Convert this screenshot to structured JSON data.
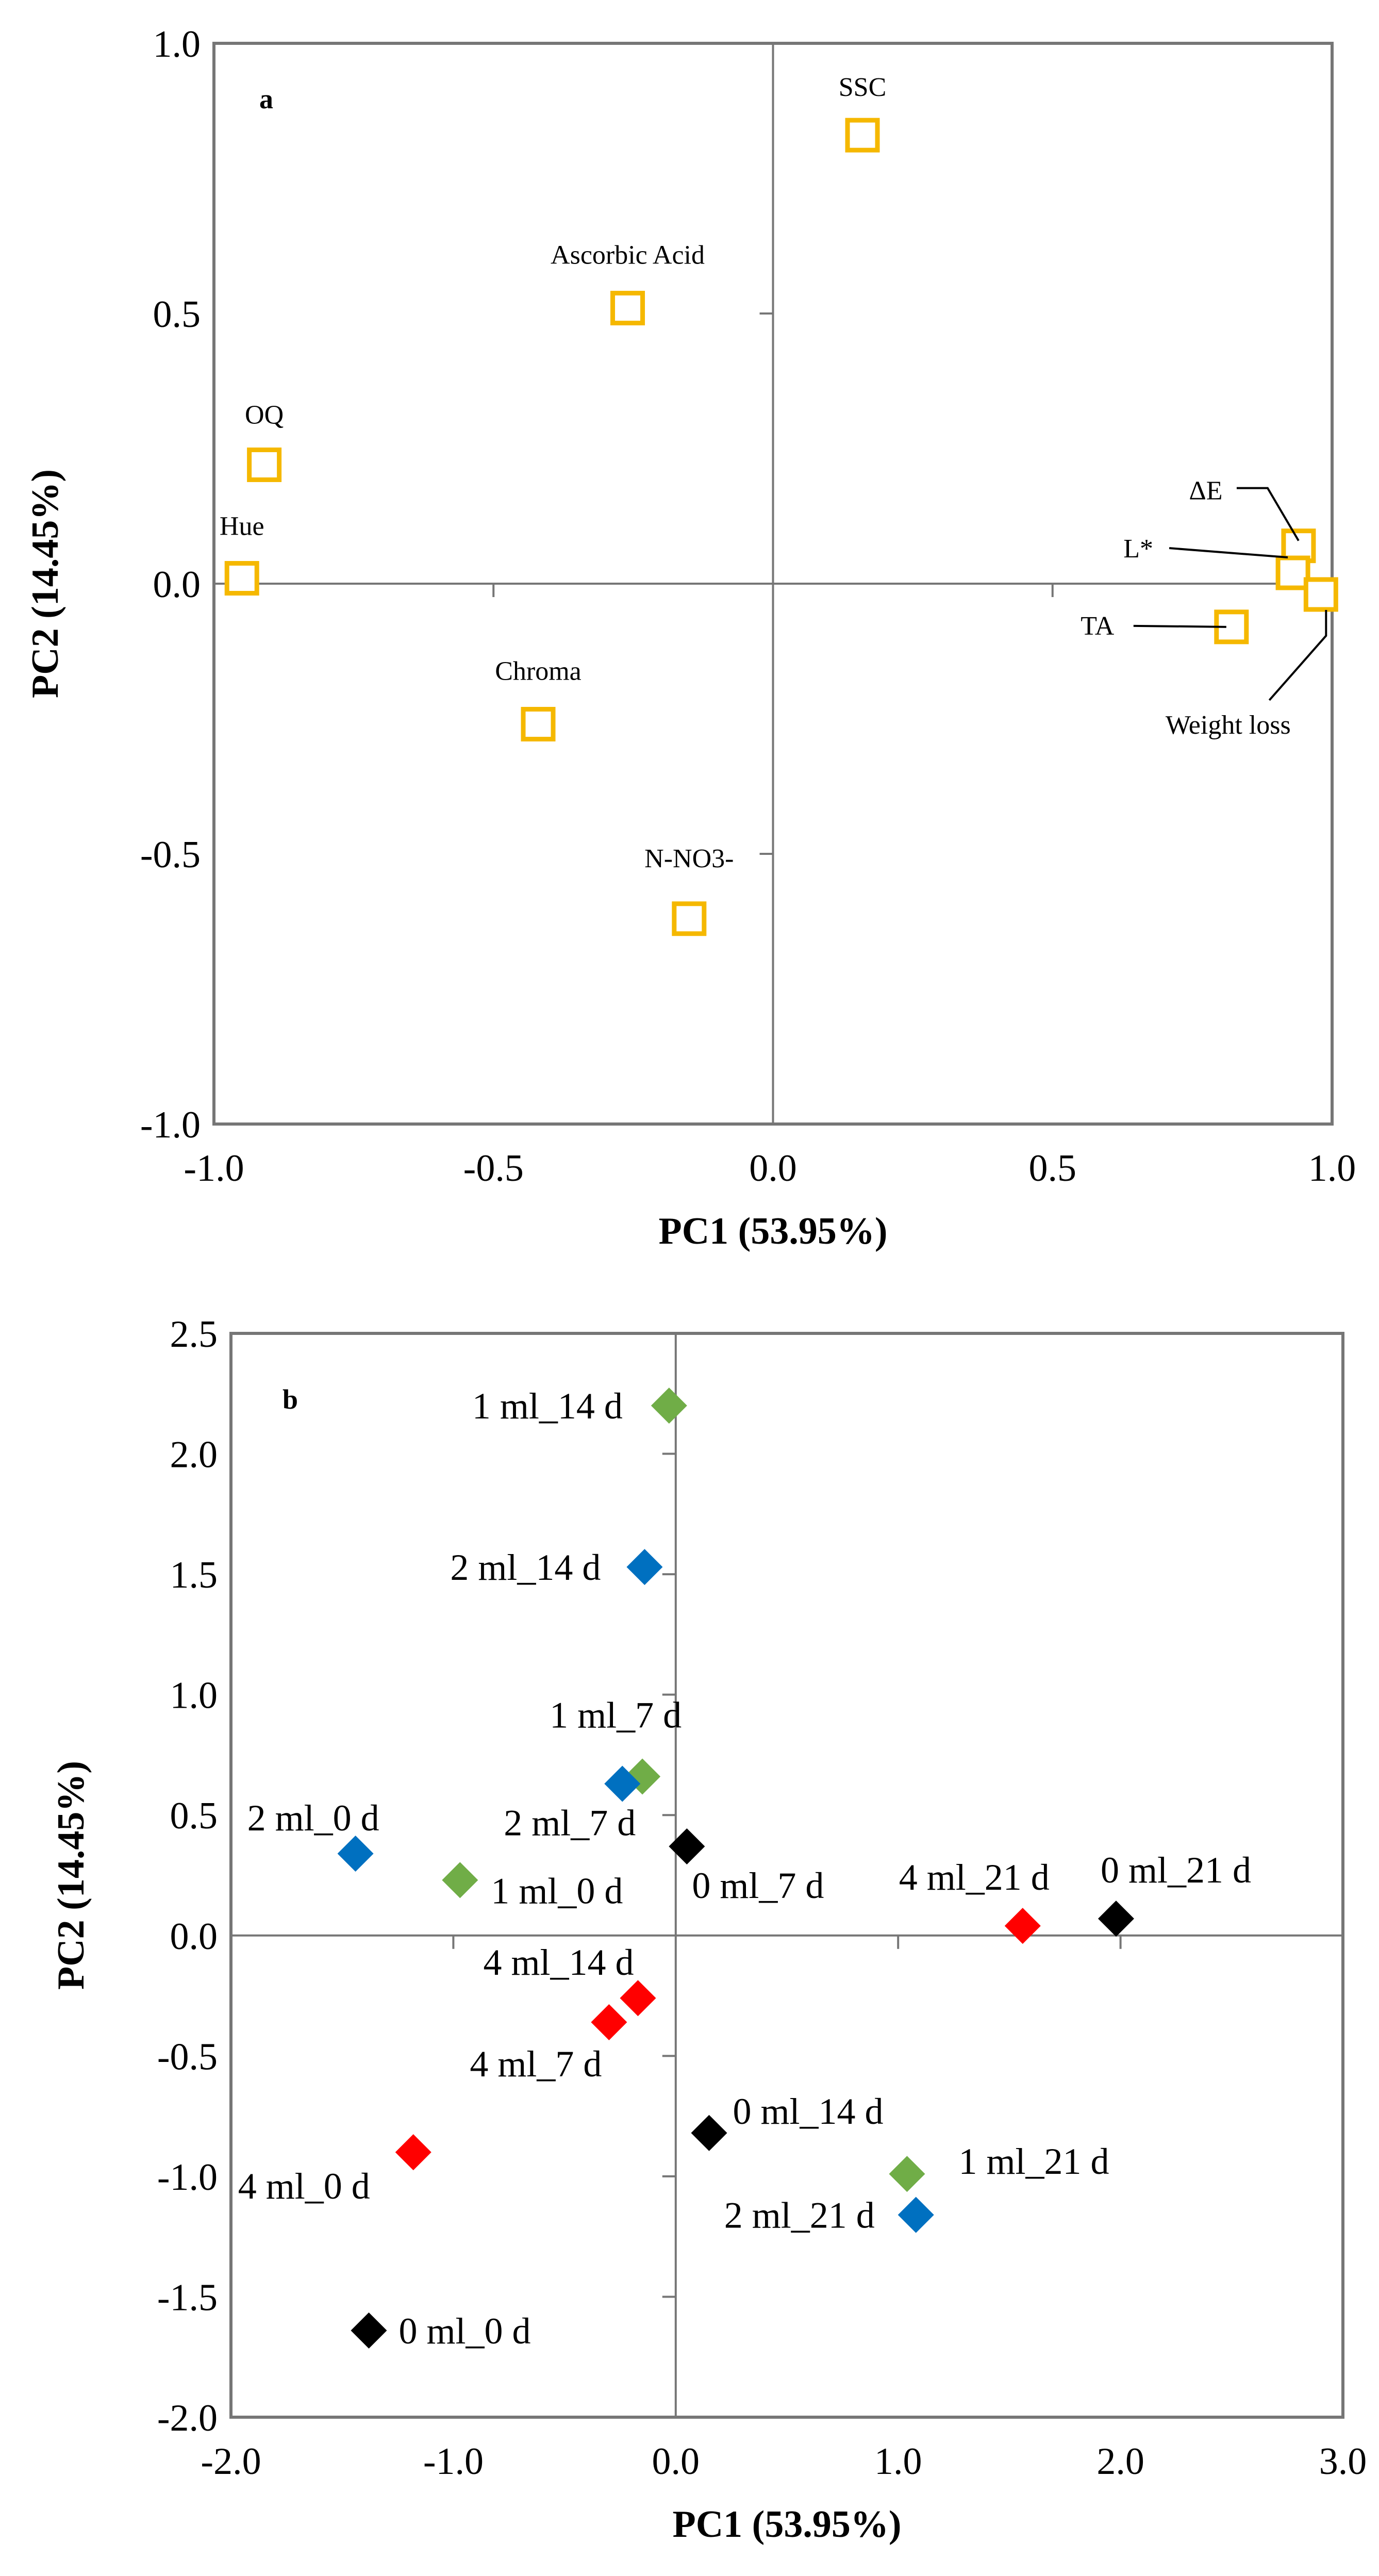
{
  "chart_data": [
    {
      "panel": "a",
      "type": "scatter",
      "title": "",
      "xlabel": "PC1 (53.95%)",
      "ylabel": "PC2 (14.45%)",
      "xlim": [
        -1.0,
        1.0
      ],
      "ylim": [
        -1.0,
        1.0
      ],
      "xticks": [
        "-1.0",
        "-0.5",
        "0.0",
        "0.5",
        "1.0"
      ],
      "yticks": [
        "1.0",
        "0.5",
        "0.0",
        "-0.5",
        "-1.0"
      ],
      "marker": {
        "shape": "hollow-square",
        "color": "#F5B800"
      },
      "points": [
        {
          "label": "SSC",
          "x": 0.16,
          "y": 0.83
        },
        {
          "label": "Ascorbic Acid",
          "x": -0.26,
          "y": 0.51
        },
        {
          "label": "OQ",
          "x": -0.91,
          "y": 0.22
        },
        {
          "label": "Hue",
          "x": -0.95,
          "y": 0.01
        },
        {
          "label": "Chroma",
          "x": -0.42,
          "y": -0.26
        },
        {
          "label": "N-NO3-",
          "x": -0.15,
          "y": -0.62
        },
        {
          "label": "ΔE",
          "x": 0.94,
          "y": 0.07
        },
        {
          "label": "L*",
          "x": 0.93,
          "y": 0.02
        },
        {
          "label": "Weight loss",
          "x": 0.98,
          "y": -0.02
        },
        {
          "label": "TA",
          "x": 0.82,
          "y": -0.08
        }
      ]
    },
    {
      "panel": "b",
      "type": "scatter",
      "title": "",
      "xlabel": "PC1 (53.95%)",
      "ylabel": "PC2 (14.45%)",
      "xlim": [
        -2.0,
        3.0
      ],
      "ylim": [
        -2.0,
        2.5
      ],
      "xticks": [
        "-2.0",
        "-1.0",
        "0.0",
        "1.0",
        "2.0",
        "3.0"
      ],
      "yticks": [
        "2.5",
        "2.0",
        "1.5",
        "1.0",
        "0.5",
        "0.0",
        "-0.5",
        "-1.0",
        "-1.5",
        "-2.0"
      ],
      "marker": {
        "shape": "diamond"
      },
      "series": [
        {
          "name": "0 ml",
          "color": "#000000",
          "points": [
            {
              "label": "0 ml_0 d",
              "x": -1.38,
              "y": -1.64
            },
            {
              "label": "0 ml_7 d",
              "x": 0.05,
              "y": 0.37
            },
            {
              "label": "0 ml_14 d",
              "x": 0.15,
              "y": -0.82
            },
            {
              "label": "0 ml_21 d",
              "x": 1.98,
              "y": 0.07
            }
          ]
        },
        {
          "name": "1 ml",
          "color": "#70AD47",
          "points": [
            {
              "label": "1 ml_0 d",
              "x": -0.97,
              "y": 0.23
            },
            {
              "label": "1 ml_7 d",
              "x": -0.15,
              "y": 0.66
            },
            {
              "label": "1 ml_14 d",
              "x": -0.03,
              "y": 2.2
            },
            {
              "label": "1 ml_21 d",
              "x": 1.04,
              "y": -0.99
            }
          ]
        },
        {
          "name": "2 ml",
          "color": "#0070C0",
          "points": [
            {
              "label": "2 ml_0 d",
              "x": -1.44,
              "y": 0.34
            },
            {
              "label": "2 ml_7 d",
              "x": -0.24,
              "y": 0.63
            },
            {
              "label": "2 ml_14 d",
              "x": -0.14,
              "y": 1.53
            },
            {
              "label": "2 ml_21 d",
              "x": 1.08,
              "y": -1.16
            }
          ]
        },
        {
          "name": "4 ml",
          "color": "#FF0000",
          "points": [
            {
              "label": "4 ml_0 d",
              "x": -1.18,
              "y": -0.9
            },
            {
              "label": "4 ml_7 d",
              "x": -0.3,
              "y": -0.36
            },
            {
              "label": "4 ml_14 d",
              "x": -0.17,
              "y": -0.26
            },
            {
              "label": "4 ml_21 d",
              "x": 1.56,
              "y": 0.04
            }
          ]
        }
      ]
    }
  ]
}
